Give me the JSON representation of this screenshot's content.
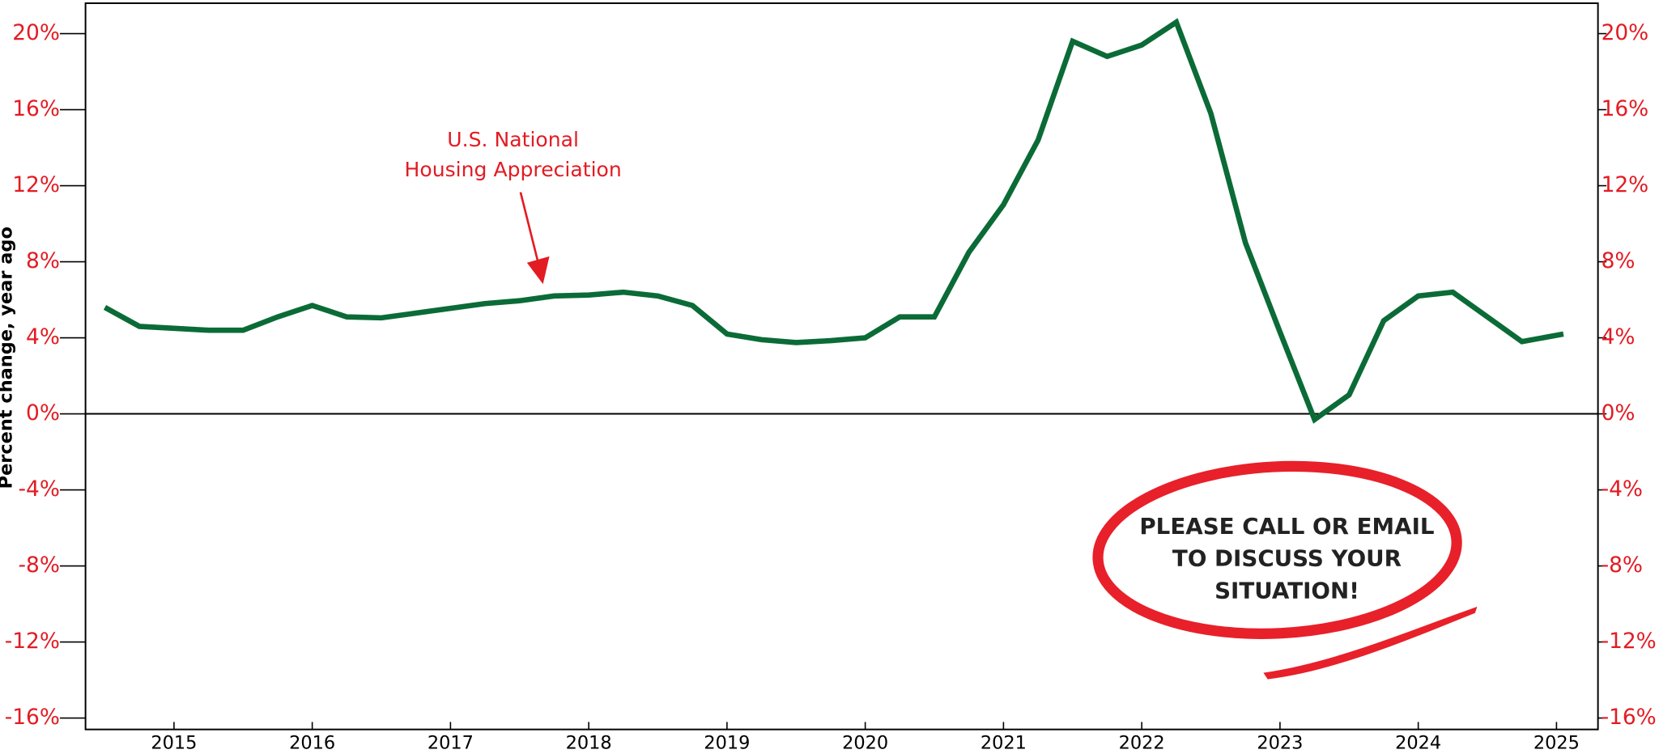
{
  "chart_data": {
    "type": "line",
    "y_label": "Percent change, year ago",
    "annotation": [
      "U.S. National",
      "Housing Appreciation"
    ],
    "callout": [
      "PLEASE CALL OR EMAIL",
      "TO DISCUSS YOUR",
      "SITUATION!"
    ],
    "x": [
      2014.5,
      2014.75,
      2015,
      2015.25,
      2015.5,
      2015.75,
      2016,
      2016.25,
      2016.5,
      2016.75,
      2017,
      2017.25,
      2017.5,
      2017.75,
      2018,
      2018.25,
      2018.5,
      2018.75,
      2019,
      2019.25,
      2019.5,
      2019.75,
      2020,
      2020.25,
      2020.5,
      2020.75,
      2021,
      2021.25,
      2021.5,
      2021.75,
      2022,
      2022.25,
      2022.5,
      2022.75,
      2023,
      2023.25,
      2023.5,
      2023.75,
      2024,
      2024.25,
      2024.5,
      2024.75,
      2025.05
    ],
    "series": [
      {
        "color": "#0b6b37",
        "values": [
          5.6,
          4.6,
          4.5,
          4.4,
          4.4,
          5.1,
          5.7,
          5.1,
          5.05,
          5.3,
          5.55,
          5.8,
          5.95,
          6.2,
          6.25,
          6.4,
          6.2,
          5.7,
          4.2,
          3.9,
          3.75,
          3.85,
          4.0,
          5.1,
          5.1,
          8.5,
          11.0,
          14.4,
          19.6,
          18.8,
          19.4,
          20.6,
          15.8,
          9.0,
          4.3,
          -0.3,
          1.0,
          4.9,
          6.2,
          6.4,
          5.1,
          3.8,
          4.2
        ]
      }
    ],
    "xlim": [
      2014.36,
      2025.3
    ],
    "xticks": [
      2015,
      2016,
      2017,
      2018,
      2019,
      2020,
      2021,
      2022,
      2023,
      2024,
      2025
    ],
    "ylim": [
      -16.6,
      21.6
    ],
    "yticks": [
      {
        "value": 20,
        "label": "20%"
      },
      {
        "value": 16,
        "label": "16%"
      },
      {
        "value": 12,
        "label": "12%"
      },
      {
        "value": 8,
        "label": "8%"
      },
      {
        "value": 4,
        "label": "4%"
      },
      {
        "value": 0,
        "label": "0%"
      },
      {
        "value": -4,
        "label": "-4%"
      },
      {
        "value": -8,
        "label": "-8%"
      },
      {
        "value": -12,
        "label": "-12%"
      },
      {
        "value": -16,
        "label": "-16%"
      }
    ],
    "y2lim": [
      -16.6,
      21.6
    ],
    "y2ticks": [
      {
        "value": 20,
        "label": "20%"
      },
      {
        "value": 16,
        "label": "16%"
      },
      {
        "value": 12,
        "label": "12%"
      },
      {
        "value": 8,
        "label": "8%"
      },
      {
        "value": 4,
        "label": "4%"
      },
      {
        "value": 0,
        "label": "0%"
      },
      {
        "value": -4,
        "label": "-4%"
      },
      {
        "value": -8,
        "label": "-8%"
      },
      {
        "value": -12,
        "label": "-12%"
      },
      {
        "value": -16,
        "label": "-16%"
      }
    ],
    "tick_color": "#e31b23"
  }
}
